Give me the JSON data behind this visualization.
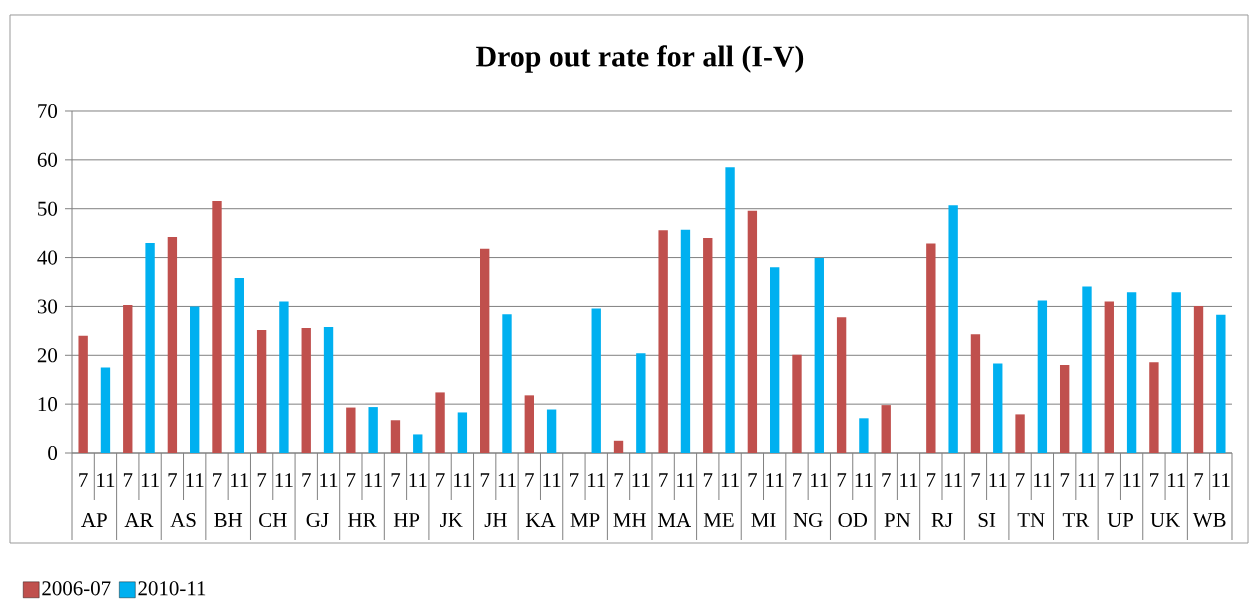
{
  "chart_data": {
    "type": "bar",
    "title": "Drop out rate for all (I-V)",
    "categories": [
      "7",
      "11",
      "7",
      "11",
      "7",
      "11",
      "7",
      "11",
      "7",
      "11",
      "7",
      "11",
      "7",
      "11",
      "7",
      "11",
      "7",
      "11",
      "7",
      "11",
      "7",
      "11",
      "7",
      "11",
      "7",
      "11",
      "7",
      "11",
      "7",
      "11",
      "7",
      "11",
      "7",
      "11",
      "7",
      "11",
      "7",
      "11",
      "7",
      "11",
      "7",
      "11",
      "7",
      "11",
      "7",
      "11",
      "7",
      "11",
      "7",
      "11",
      "7",
      "11"
    ],
    "annotations": [
      "AP",
      "AR",
      "AS",
      "BH",
      "CH",
      "GJ",
      "HR",
      "HP",
      "JK",
      "JH",
      "KA",
      "MP",
      "MH",
      "MA",
      "ME",
      "MI",
      "NG",
      "OD",
      "PN",
      "RJ",
      "SI",
      "TN",
      "TR",
      "UP",
      "UK",
      "WB"
    ],
    "series": [
      {
        "name": "2006-07",
        "color": "#c0504d",
        "values": [
          24,
          null,
          30.3,
          null,
          44.2,
          null,
          51.6,
          null,
          25.2,
          null,
          25.6,
          null,
          9.3,
          null,
          6.7,
          null,
          12.4,
          null,
          41.8,
          null,
          11.8,
          null,
          null,
          null,
          2.5,
          null,
          45.6,
          null,
          44,
          null,
          49.6,
          null,
          20.1,
          null,
          27.8,
          null,
          9.8,
          null,
          42.9,
          null,
          24.3,
          null,
          7.9,
          null,
          18,
          null,
          31,
          null,
          18.6,
          null,
          30.1,
          null
        ]
      },
      {
        "name": "2010-11",
        "color": "#00b0f0",
        "values": [
          null,
          17.5,
          null,
          43,
          null,
          30,
          null,
          35.8,
          null,
          31,
          null,
          25.8,
          null,
          9.4,
          null,
          3.8,
          null,
          8.3,
          null,
          28.4,
          null,
          8.9,
          null,
          29.6,
          null,
          20.4,
          null,
          45.7,
          null,
          58.5,
          null,
          38,
          null,
          39.9,
          null,
          7.1,
          null,
          null,
          null,
          50.7,
          null,
          18.3,
          null,
          31.2,
          null,
          34.1,
          null,
          32.9,
          null,
          32.9,
          null,
          28.3
        ]
      }
    ],
    "ylim": [
      0,
      70
    ],
    "yticks": [
      0,
      10,
      20,
      30,
      40,
      50,
      60,
      70
    ],
    "grid": "y",
    "legend": "bottom left"
  }
}
